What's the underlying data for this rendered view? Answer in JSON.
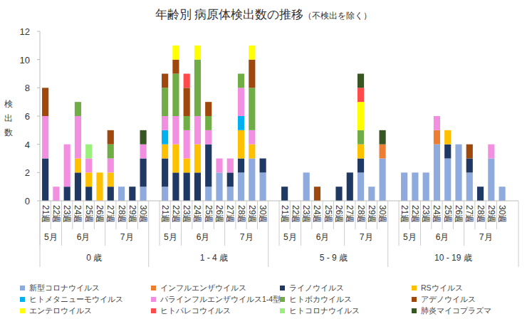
{
  "chart_data": {
    "type": "bar",
    "stacked": true,
    "grid": false,
    "legend": "bottom",
    "title": "年齢別 病原体検出数の推移",
    "subtitle": "（不検出を除く）",
    "y_label": "検出数",
    "ylim": [
      0,
      12
    ],
    "yticks": [
      0,
      2,
      4,
      6,
      8,
      10,
      12
    ],
    "categories": [
      "21週",
      "22週",
      "23週",
      "24週",
      "25週",
      "26週",
      "27週",
      "28週",
      "29週",
      "30週",
      "21週",
      "22週",
      "23週",
      "24週",
      "25週",
      "26週",
      "27週",
      "28週",
      "29週",
      "30週",
      "21週",
      "22週",
      "23週",
      "24週",
      "25週",
      "26週",
      "27週",
      "28週",
      "29週",
      "30週",
      "21週",
      "22週",
      "23週",
      "24週",
      "25週",
      "26週",
      "27週",
      "28週",
      "29週",
      "30週"
    ],
    "months": [
      "5月",
      "5月",
      "6月",
      "6月",
      "6月",
      "6月",
      "7月",
      "7月",
      "7月",
      "7月",
      "5月",
      "5月",
      "6月",
      "6月",
      "6月",
      "6月",
      "7月",
      "7月",
      "7月",
      "7月",
      "5月",
      "5月",
      "6月",
      "6月",
      "6月",
      "6月",
      "7月",
      "7月",
      "7月",
      "7月",
      "5月",
      "5月",
      "6月",
      "6月",
      "6月",
      "6月",
      "7月",
      "7月",
      "7月",
      "7月"
    ],
    "groups": [
      "0 歳",
      "0 歳",
      "0 歳",
      "0 歳",
      "0 歳",
      "0 歳",
      "0 歳",
      "0 歳",
      "0 歳",
      "0 歳",
      "1 - 4 歳",
      "1 - 4 歳",
      "1 - 4 歳",
      "1 - 4 歳",
      "1 - 4 歳",
      "1 - 4 歳",
      "1 - 4 歳",
      "1 - 4 歳",
      "1 - 4 歳",
      "1 - 4 歳",
      "5 - 9 歳",
      "5 - 9 歳",
      "5 - 9 歳",
      "5 - 9 歳",
      "5 - 9 歳",
      "5 - 9 歳",
      "5 - 9 歳",
      "5 - 9 歳",
      "5 - 9 歳",
      "5 - 9 歳",
      "10 - 19 歳",
      "10 - 19 歳",
      "10 - 19 歳",
      "10 - 19 歳",
      "10 - 19 歳",
      "10 - 19 歳",
      "10 - 19 歳",
      "10 - 19 歳",
      "10 - 19 歳",
      "10 - 19 歳"
    ],
    "series": [
      {
        "name": "新型コロナウイルス",
        "color": "#8FAADC",
        "values": [
          0,
          0,
          0,
          0,
          0,
          0,
          0,
          1,
          0,
          1,
          1,
          0,
          0,
          0,
          1,
          2,
          1,
          2,
          3,
          2,
          0,
          0,
          2,
          0,
          0,
          0,
          0,
          2,
          1,
          3,
          2,
          2,
          2,
          4,
          3,
          4,
          2,
          0,
          3,
          1
        ]
      },
      {
        "name": "インフルエンザウイルス",
        "color": "#ED7D31",
        "values": [
          0,
          0,
          0,
          0,
          0,
          0,
          0,
          0,
          0,
          0,
          0,
          0,
          0,
          0,
          0,
          0,
          0,
          0,
          0,
          0,
          0,
          0,
          0,
          0,
          0,
          0,
          0,
          0,
          0,
          1,
          0,
          0,
          0,
          1,
          0,
          0,
          0,
          0,
          0,
          0
        ]
      },
      {
        "name": "ライノウイルス",
        "color": "#203864",
        "values": [
          3,
          0,
          1,
          2,
          1,
          0,
          1,
          0,
          1,
          2,
          2,
          2,
          2,
          2,
          3,
          0,
          1,
          1,
          0,
          1,
          1,
          0,
          0,
          0,
          0,
          1,
          2,
          1,
          0,
          0,
          0,
          0,
          0,
          0,
          1,
          0,
          1,
          1,
          0,
          0
        ]
      },
      {
        "name": "RSウイルス",
        "color": "#FFC000",
        "values": [
          0,
          0,
          0,
          1,
          1,
          2,
          1,
          0,
          0,
          0,
          1,
          2,
          1,
          2,
          0,
          0,
          0,
          2,
          1,
          0,
          0,
          0,
          0,
          0,
          0,
          0,
          0,
          1,
          0,
          0,
          0,
          0,
          0,
          0,
          1,
          0,
          0,
          0,
          0,
          0
        ]
      },
      {
        "name": "ヒトメタニューモウイルス",
        "color": "#00B0F0",
        "values": [
          0,
          0,
          0,
          0,
          0,
          0,
          0,
          0,
          0,
          0,
          1,
          0,
          0,
          0,
          0,
          0,
          0,
          1,
          0,
          0,
          0,
          0,
          0,
          0,
          0,
          0,
          0,
          0,
          0,
          0,
          0,
          0,
          0,
          0,
          0,
          0,
          0,
          0,
          0,
          0
        ]
      },
      {
        "name": "パラインフルエンザウイルス1-4型",
        "color": "#F28FE0",
        "values": [
          3,
          1,
          3,
          3,
          1,
          0,
          1,
          0,
          0,
          1,
          1,
          2,
          2,
          2,
          1,
          1,
          1,
          2,
          1,
          0,
          0,
          0,
          0,
          0,
          0,
          0,
          0,
          0,
          0,
          0,
          0,
          0,
          0,
          1,
          0,
          0,
          0,
          0,
          1,
          0
        ]
      },
      {
        "name": "ヒトボカウイルス",
        "color": "#70AD47",
        "values": [
          0,
          0,
          0,
          1,
          0,
          0,
          1,
          0,
          0,
          0,
          2,
          3,
          1,
          4,
          1,
          0,
          0,
          1,
          3,
          0,
          0,
          0,
          0,
          0,
          0,
          0,
          0,
          1,
          0,
          0,
          0,
          0,
          0,
          0,
          0,
          0,
          0,
          0,
          0,
          0
        ]
      },
      {
        "name": "アデノウイルス",
        "color": "#9E480E",
        "values": [
          2,
          0,
          0,
          0,
          0,
          0,
          1,
          0,
          0,
          0,
          1,
          1,
          2,
          0,
          1,
          0,
          0,
          0,
          2,
          0,
          0,
          0,
          0,
          1,
          0,
          0,
          0,
          0,
          0,
          0,
          0,
          0,
          0,
          0,
          0,
          0,
          1,
          0,
          0,
          0
        ]
      },
      {
        "name": "エンテロウイルス",
        "color": "#FFFF00",
        "values": [
          0,
          0,
          0,
          0,
          0,
          0,
          0,
          0,
          0,
          0,
          0,
          1,
          0,
          1,
          0,
          0,
          0,
          0,
          1,
          0,
          0,
          0,
          0,
          0,
          0,
          0,
          0,
          2,
          0,
          0,
          0,
          0,
          0,
          0,
          0,
          0,
          0,
          0,
          0,
          0
        ]
      },
      {
        "name": "ヒトパレコウイルス",
        "color": "#FF4B4B",
        "values": [
          0,
          0,
          0,
          0,
          0,
          0,
          0,
          0,
          0,
          0,
          0,
          0,
          1,
          0,
          0,
          0,
          0,
          0,
          0,
          0,
          0,
          0,
          0,
          0,
          0,
          0,
          0,
          1,
          0,
          0,
          0,
          0,
          0,
          0,
          0,
          0,
          0,
          0,
          0,
          0
        ]
      },
      {
        "name": "ヒトコロナウイルス",
        "color": "#9BEF7C",
        "values": [
          0,
          0,
          0,
          0,
          1,
          0,
          0,
          0,
          0,
          0,
          0,
          0,
          0,
          0,
          0,
          0,
          0,
          0,
          0,
          0,
          0,
          0,
          0,
          0,
          0,
          0,
          0,
          0,
          0,
          0,
          0,
          0,
          0,
          0,
          0,
          0,
          0,
          0,
          0,
          0
        ]
      },
      {
        "name": "肺炎マイコプラズマ",
        "color": "#375623",
        "values": [
          0,
          0,
          0,
          0,
          0,
          0,
          0,
          0,
          0,
          1,
          0,
          0,
          0,
          0,
          0,
          0,
          0,
          0,
          0,
          0,
          0,
          0,
          0,
          0,
          0,
          0,
          0,
          1,
          0,
          1,
          0,
          0,
          0,
          0,
          0,
          0,
          0,
          0,
          0,
          0
        ]
      }
    ]
  }
}
